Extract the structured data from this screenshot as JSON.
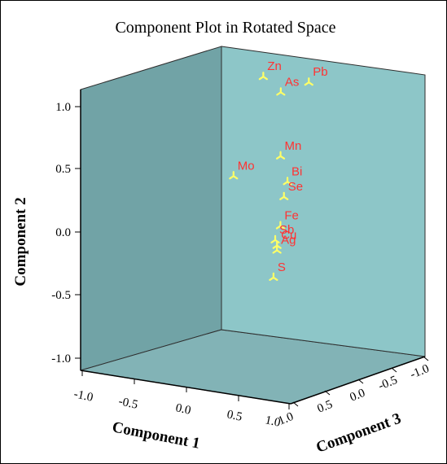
{
  "chart_data": {
    "type": "scatter",
    "title": "Component Plot in Rotated Space",
    "axes": {
      "x": {
        "label": "Component 1",
        "ticks": [
          "-1.0",
          "-0.5",
          "0.0",
          "0.5",
          "1.0"
        ],
        "range": [
          -1.0,
          1.0
        ]
      },
      "y": {
        "label": "Component 2",
        "ticks": [
          "-1.0",
          "-0.5",
          "0.0",
          "0.5",
          "1.0"
        ],
        "range": [
          -1.0,
          1.0
        ]
      },
      "z": {
        "label": "Component 3",
        "ticks": [
          "1.0",
          "0.5",
          "0.0",
          "-0.5",
          "-1.0"
        ],
        "range": [
          -1.0,
          1.0
        ]
      }
    },
    "points": [
      {
        "label": "Zn",
        "c1": -0.3,
        "c2": 0.95,
        "c3": -0.55
      },
      {
        "label": "As",
        "c1": -0.1,
        "c2": 0.87,
        "c3": -0.5
      },
      {
        "label": "Pb",
        "c1": 0.1,
        "c2": 0.95,
        "c3": -0.6
      },
      {
        "label": "Mo",
        "c1": -0.55,
        "c2": 0.22,
        "c3": -0.5
      },
      {
        "label": "Mn",
        "c1": 0.3,
        "c2": 0.55,
        "c3": 0.1
      },
      {
        "label": "Bi",
        "c1": 0.5,
        "c2": 0.42,
        "c3": 0.3
      },
      {
        "label": "Se",
        "c1": 0.5,
        "c2": 0.32,
        "c3": 0.35
      },
      {
        "label": "Fe",
        "c1": 0.5,
        "c2": 0.12,
        "c3": 0.4
      },
      {
        "label": "Sb",
        "c1": 0.35,
        "c2": -0.02,
        "c3": 0.25
      },
      {
        "label": "Cu",
        "c1": 0.3,
        "c2": -0.08,
        "c3": 0.15
      },
      {
        "label": "Ag",
        "c1": 0.4,
        "c2": -0.08,
        "c3": 0.3
      },
      {
        "label": "S",
        "c1": 0.3,
        "c2": -0.3,
        "c3": 0.2
      }
    ],
    "colors": {
      "back_wall": "#8dc6c8",
      "left_wall": "#71a3a6",
      "floor": "#82b3b6",
      "marker": "#ffff66",
      "point_label": "#ff3333"
    },
    "grid": false,
    "legend": "none"
  }
}
